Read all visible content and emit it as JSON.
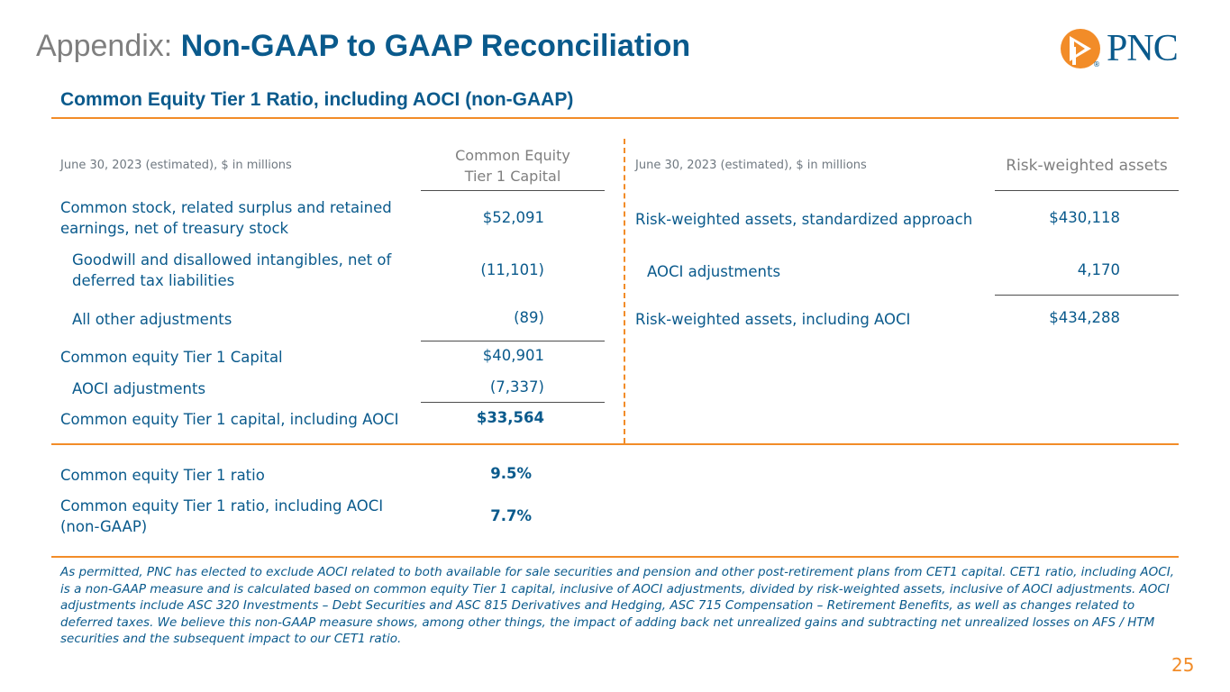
{
  "header": {
    "title_prefix": "Appendix:",
    "title_main": "Non-GAAP to GAAP Reconciliation",
    "subtitle": "Common Equity Tier 1 Ratio, including AOCI (non-GAAP)",
    "logo_text": "PNC",
    "logo_mark": "®"
  },
  "colors": {
    "accent": "#f28c28",
    "brand_blue": "#0a5a8c",
    "muted": "#7f7f7f"
  },
  "left_table": {
    "header_label": "June 30, 2023 (estimated), $ in millions",
    "column_header_line1": "Common Equity",
    "column_header_line2": "Tier 1 Capital",
    "rows": [
      {
        "label": "Common stock, related surplus and retained earnings, net of treasury stock",
        "value": "$52,091"
      },
      {
        "label": "Goodwill and disallowed intangibles, net of deferred tax liabilities",
        "value": "(11,101)"
      },
      {
        "label": "All other adjustments",
        "value": "(89)"
      },
      {
        "label": "Common equity Tier 1 Capital",
        "value": "$40,901"
      },
      {
        "label": "AOCI adjustments",
        "value": "(7,337)"
      },
      {
        "label": "Common equity Tier 1 capital, including AOCI",
        "value": "$33,564"
      }
    ]
  },
  "right_table": {
    "header_label": "June 30, 2023 (estimated), $ in millions",
    "column_header": "Risk-weighted assets",
    "rows": [
      {
        "label": "Risk-weighted assets, standardized approach",
        "value": "$430,118"
      },
      {
        "label": "AOCI adjustments",
        "value": "4,170"
      },
      {
        "label": "Risk-weighted assets, including AOCI",
        "value": "$434,288"
      }
    ]
  },
  "ratios": [
    {
      "label": "Common equity Tier 1 ratio",
      "value": "9.5%"
    },
    {
      "label": "Common equity Tier 1 ratio, including AOCI (non-GAAP)",
      "value": "7.7%"
    }
  ],
  "footnote": "As permitted, PNC has elected to exclude AOCI related to both available for sale securities and pension and other post-retirement plans from CET1 capital. CET1 ratio, including AOCI, is a non-GAAP measure and is calculated based on common equity Tier 1 capital, inclusive of AOCI adjustments, divided by risk-weighted assets, inclusive of AOCI adjustments. AOCI adjustments include ASC 320 Investments – Debt Securities and ASC 815 Derivatives and Hedging, ASC 715 Compensation – Retirement Benefits, as well as changes related to deferred taxes. We believe this non-GAAP measure shows, among other things, the impact of adding back net unrealized gains and subtracting net unrealized losses on AFS / HTM securities and the subsequent impact to our CET1 ratio.",
  "page_number": "25"
}
